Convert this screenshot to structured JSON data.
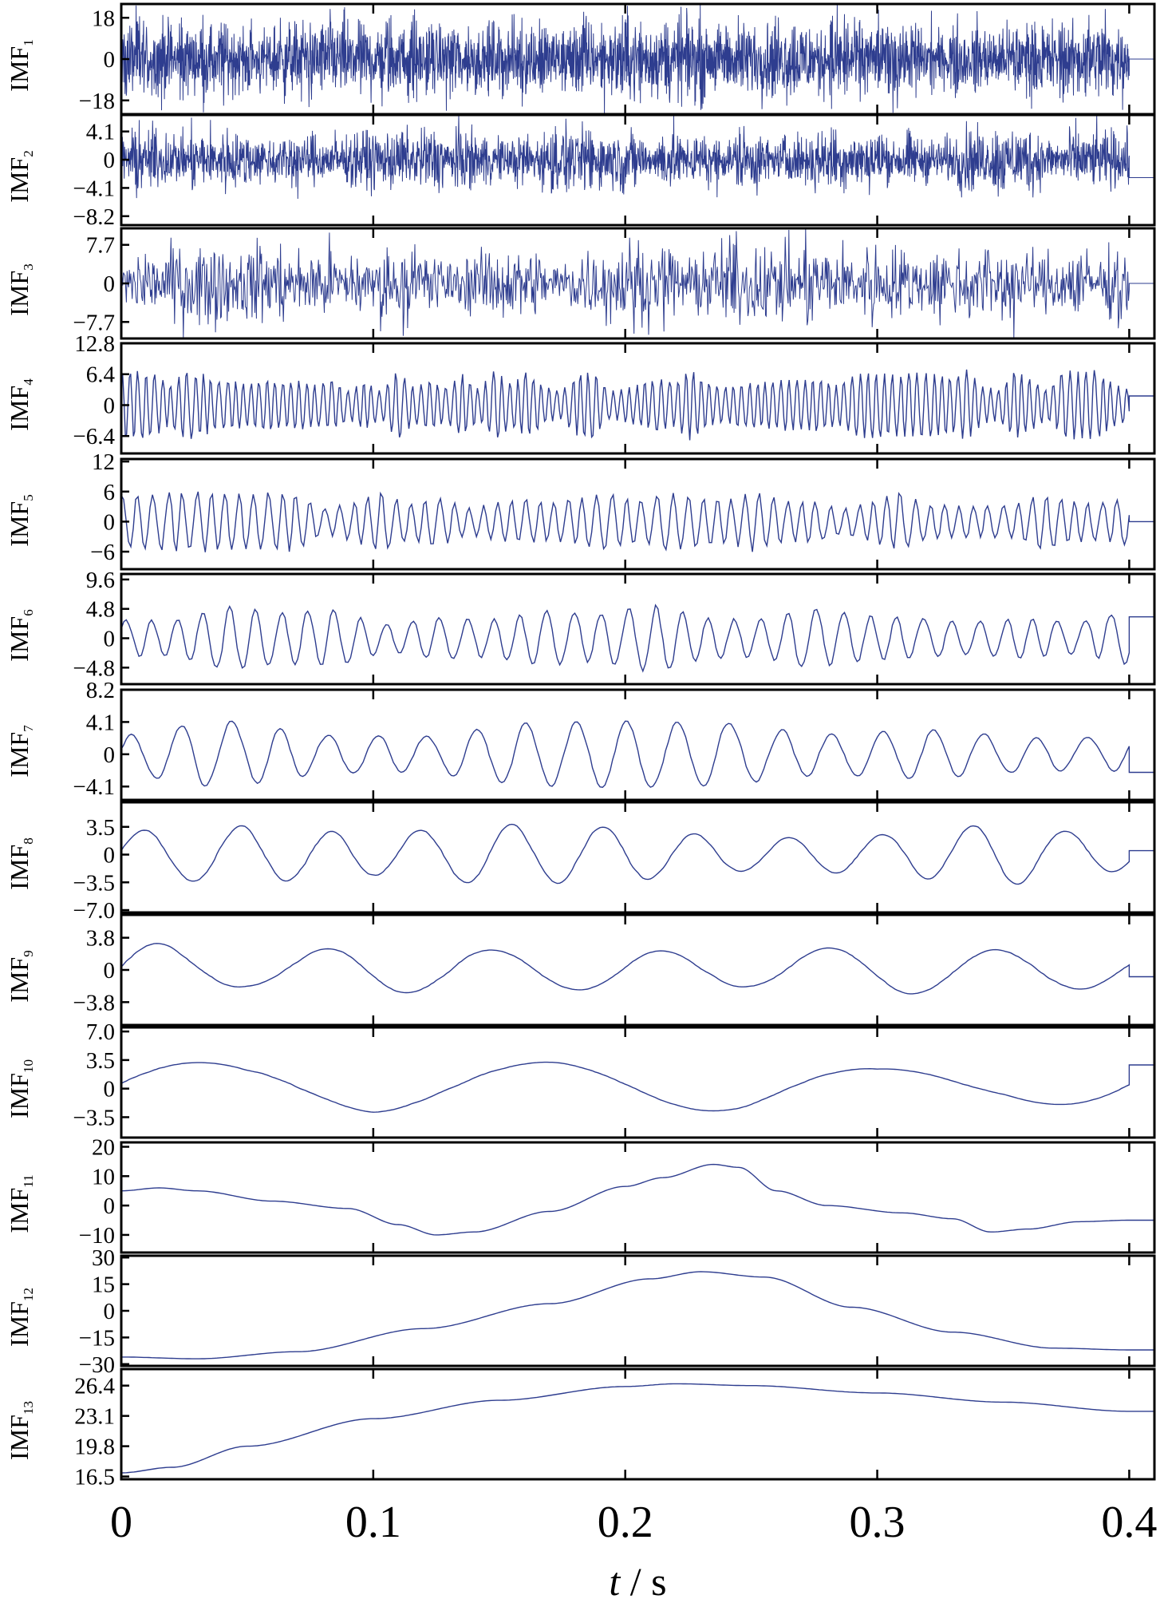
{
  "chart_data": {
    "type": "line",
    "layout": "13 stacked panels sharing one time axis",
    "xlabel_italic": "t",
    "xlabel_rest": " / s",
    "xlim": [
      0,
      0.41
    ],
    "xticks": [
      "0",
      "0.1",
      "0.2",
      "0.3",
      "0.4"
    ],
    "xtick_values": [
      0,
      0.1,
      0.2,
      0.3,
      0.4
    ],
    "signal_end": 0.4,
    "grid": false,
    "line_color": "#2e3d8f",
    "panels": [
      {
        "label": "IMF",
        "sub": "1",
        "ylim": [
          -24,
          24
        ],
        "ticks": [
          18,
          0,
          -18
        ],
        "tick_labels": [
          "18",
          "0",
          "−18"
        ],
        "amplitude": 17,
        "cycles": 900,
        "offset": 0,
        "end_value": 0
      },
      {
        "label": "IMF",
        "sub": "2",
        "ylim": [
          -9.5,
          6.5
        ],
        "ticks": [
          4.1,
          0,
          -4.1,
          -8.2
        ],
        "tick_labels": [
          "4.1",
          "0",
          "−4.1",
          "−8.2"
        ],
        "amplitude": 4.3,
        "cycles": 450,
        "offset": 0,
        "end_value": -2.6
      },
      {
        "label": "IMF",
        "sub": "3",
        "ylim": [
          -11,
          11
        ],
        "ticks": [
          7.7,
          0,
          -7.7
        ],
        "tick_labels": [
          "7.7",
          "0",
          "−7.7"
        ],
        "amplitude": 7.5,
        "cycles": 230,
        "offset": 0,
        "end_value": 0
      },
      {
        "label": "IMF",
        "sub": "4",
        "ylim": [
          -10,
          12.8
        ],
        "ticks": [
          12.8,
          6.4,
          0,
          -6.4
        ],
        "tick_labels": [
          "12.8",
          "6.4",
          "0",
          "−6.4"
        ],
        "amplitude": 6.2,
        "cycles": 125,
        "offset": 0,
        "end_value": 1.9
      },
      {
        "label": "IMF",
        "sub": "5",
        "ylim": [
          -9.5,
          12.5
        ],
        "ticks": [
          12,
          6,
          0,
          -6
        ],
        "tick_labels": [
          "12",
          "6",
          "0",
          "−6"
        ],
        "amplitude": 5.2,
        "cycles": 70,
        "offset": 0,
        "end_value": 0
      },
      {
        "label": "IMF",
        "sub": "6",
        "ylim": [
          -7.5,
          10.5
        ],
        "ticks": [
          9.6,
          4.8,
          0,
          -4.8
        ],
        "tick_labels": [
          "9.6",
          "4.8",
          "0",
          "−4.8"
        ],
        "amplitude": 4.8,
        "cycles": 38,
        "offset": 0,
        "end_value": 3.5
      },
      {
        "label": "IMF",
        "sub": "7",
        "ylim": [
          -5.8,
          8.2
        ],
        "ticks": [
          8.2,
          4.1,
          0,
          -4.1
        ],
        "tick_labels": [
          "8.2",
          "4.1",
          "0",
          "−4.1"
        ],
        "amplitude": 3.8,
        "cycles": 20,
        "offset": 0,
        "end_value": -2.3
      },
      {
        "label": "IMF",
        "sub": "8",
        "ylim": [
          -7.3,
          6.6
        ],
        "ticks": [
          3.5,
          0,
          -3.5,
          -7.0
        ],
        "tick_labels": [
          "3.5",
          "0",
          "−3.5",
          "−7.0"
        ],
        "amplitude": 3.5,
        "cycles": 11,
        "offset": 0,
        "end_value": 0.5
      },
      {
        "label": "IMF",
        "sub": "9",
        "ylim": [
          -6.5,
          6.5
        ],
        "ticks": [
          3.8,
          0,
          -3.8
        ],
        "tick_labels": [
          "3.8",
          "0",
          "−3.8"
        ],
        "amplitude": 3.6,
        "cycles": 6,
        "offset": 0,
        "end_value": -0.8
      },
      {
        "label": "IMF",
        "sub": "10",
        "ylim": [
          -6,
          7.5
        ],
        "ticks": [
          7.0,
          3.5,
          0,
          -3.5
        ],
        "tick_labels": [
          "7.0",
          "3.5",
          "0",
          "−3.5"
        ],
        "amplitude": 3.4,
        "cycles": 3,
        "offset": 0.5,
        "end_value": 2.9
      },
      {
        "label": "IMF",
        "sub": "11",
        "ylim": [
          -16,
          21.5
        ],
        "ticks": [
          20,
          10,
          0,
          -10
        ],
        "tick_labels": [
          "20",
          "10",
          "0",
          "−10"
        ],
        "amplitude": 0,
        "cycles": 0,
        "offset": 0,
        "end_value": -5,
        "points": [
          [
            0,
            5
          ],
          [
            0.015,
            6
          ],
          [
            0.03,
            5
          ],
          [
            0.06,
            1.5
          ],
          [
            0.09,
            -1
          ],
          [
            0.11,
            -6.5
          ],
          [
            0.125,
            -10
          ],
          [
            0.14,
            -9
          ],
          [
            0.17,
            -2
          ],
          [
            0.2,
            6.5
          ],
          [
            0.215,
            9.5
          ],
          [
            0.235,
            14
          ],
          [
            0.245,
            13
          ],
          [
            0.26,
            5
          ],
          [
            0.28,
            0
          ],
          [
            0.31,
            -2.5
          ],
          [
            0.33,
            -4.5
          ],
          [
            0.345,
            -9
          ],
          [
            0.36,
            -8
          ],
          [
            0.38,
            -5.5
          ],
          [
            0.4,
            -5
          ]
        ]
      },
      {
        "label": "IMF",
        "sub": "12",
        "ylim": [
          -31,
          31
        ],
        "ticks": [
          30,
          15,
          0,
          -15,
          -30
        ],
        "tick_labels": [
          "30",
          "15",
          "0",
          "−15",
          "−30"
        ],
        "amplitude": 0,
        "cycles": 0,
        "offset": 0,
        "end_value": -22,
        "points": [
          [
            0,
            -26
          ],
          [
            0.03,
            -27
          ],
          [
            0.07,
            -23
          ],
          [
            0.12,
            -10
          ],
          [
            0.17,
            4
          ],
          [
            0.21,
            18
          ],
          [
            0.23,
            22
          ],
          [
            0.255,
            19
          ],
          [
            0.29,
            2
          ],
          [
            0.33,
            -12
          ],
          [
            0.37,
            -21
          ],
          [
            0.4,
            -22
          ]
        ]
      },
      {
        "label": "IMF",
        "sub": "13",
        "ylim": [
          16.2,
          28.2
        ],
        "ticks": [
          26.4,
          23.1,
          19.8,
          16.5
        ],
        "tick_labels": [
          "26.4",
          "23.1",
          "19.8",
          "16.5"
        ],
        "amplitude": 0,
        "cycles": 0,
        "offset": 0,
        "end_value": 23.6,
        "points": [
          [
            0,
            16.9
          ],
          [
            0.02,
            17.5
          ],
          [
            0.05,
            19.8
          ],
          [
            0.1,
            22.8
          ],
          [
            0.15,
            24.8
          ],
          [
            0.2,
            26.3
          ],
          [
            0.22,
            26.6
          ],
          [
            0.25,
            26.4
          ],
          [
            0.3,
            25.6
          ],
          [
            0.35,
            24.6
          ],
          [
            0.4,
            23.6
          ]
        ]
      }
    ]
  }
}
